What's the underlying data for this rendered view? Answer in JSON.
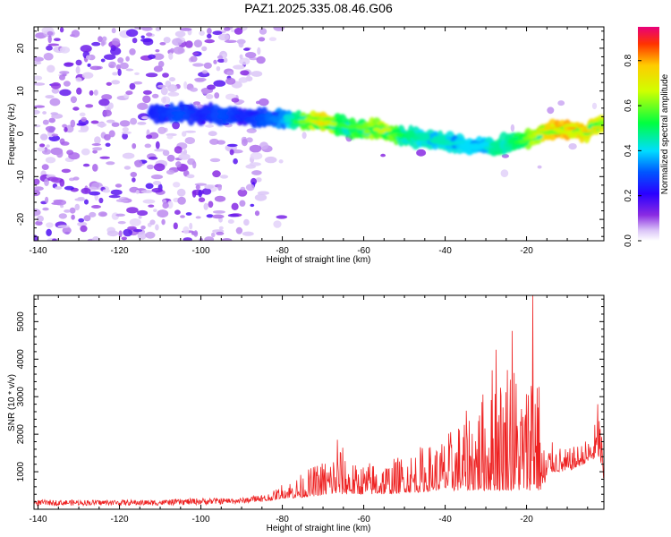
{
  "title": "PAZ1.2025.335.08.46.G06",
  "chart_data": [
    {
      "type": "heatmap",
      "xlabel": "Height of straight line (km)",
      "ylabel": "Frequency (Hz)",
      "xlim": [
        -141,
        -1
      ],
      "ylim": [
        -25,
        25
      ],
      "xticks": [
        -140,
        -120,
        -100,
        -80,
        -60,
        -40,
        -20
      ],
      "yticks": [
        -20,
        -10,
        0,
        10,
        20
      ],
      "colorbar_label": "Normalized spectral amplitude",
      "colorbar_range": [
        0,
        0.95
      ],
      "colorbar_ticks": [
        0.0,
        0.2,
        0.4,
        0.6,
        0.8
      ],
      "colormap_stops": [
        "#ffffff",
        "#d9c2f7",
        "#8a2be2",
        "#5a00ff",
        "#0000ff",
        "#00ffff",
        "#00ff00",
        "#ffff00",
        "#ff0000",
        "#e8007a"
      ],
      "ridge_x": [
        -112,
        -105,
        -100,
        -95,
        -90,
        -85,
        -80,
        -75,
        -70,
        -65,
        -60,
        -55,
        -50,
        -45,
        -40,
        -35,
        -30,
        -27,
        -25,
        -20,
        -15,
        -10,
        -5,
        -2
      ],
      "ridge_y": [
        5,
        5,
        4.5,
        4.5,
        4,
        3.5,
        3.5,
        3,
        2.5,
        1.5,
        1,
        0.5,
        -0.5,
        -1,
        -2,
        -2.5,
        -3,
        -3.5,
        -2.5,
        -1.5,
        1,
        1,
        0.5,
        2
      ],
      "ridge_amplitude": [
        0.25,
        0.3,
        0.25,
        0.3,
        0.25,
        0.3,
        0.35,
        0.6,
        0.75,
        0.55,
        0.6,
        0.7,
        0.5,
        0.45,
        0.45,
        0.4,
        0.4,
        0.5,
        0.45,
        0.6,
        0.75,
        0.85,
        0.8,
        0.7
      ]
    },
    {
      "type": "line",
      "xlabel": "Height of straight line (km)",
      "ylabel": "SNR (10 * v/v)",
      "xlim": [
        -141,
        -1
      ],
      "ylim": [
        0,
        5700
      ],
      "xticks": [
        -140,
        -120,
        -100,
        -80,
        -60,
        -40,
        -20
      ],
      "yticks": [
        1000,
        2000,
        3000,
        4000,
        5000
      ],
      "line_color": "#ee2222",
      "envelope_x": [
        -141,
        -130,
        -120,
        -110,
        -100,
        -90,
        -85,
        -82,
        -80,
        -76,
        -72,
        -68,
        -66,
        -62,
        -58,
        -54,
        -50,
        -46,
        -42,
        -38,
        -35,
        -32,
        -30,
        -28,
        -26,
        -24,
        -22,
        -20,
        -18,
        -16,
        -14,
        -12,
        -10,
        -8,
        -6,
        -4,
        -2,
        -1
      ],
      "envelope_y": [
        250,
        250,
        250,
        250,
        300,
        300,
        400,
        500,
        700,
        900,
        1200,
        1500,
        1800,
        1200,
        1300,
        1300,
        1500,
        1700,
        1800,
        2200,
        2600,
        3000,
        3300,
        4200,
        3700,
        4700,
        3500,
        3500,
        5700,
        1800,
        1800,
        1700,
        1600,
        1700,
        1800,
        2000,
        2800,
        1200
      ],
      "floor_y": [
        100,
        100,
        100,
        100,
        120,
        150,
        200,
        250,
        300,
        300,
        350,
        400,
        400,
        400,
        400,
        400,
        450,
        450,
        500,
        500,
        500,
        500,
        500,
        500,
        500,
        500,
        500,
        500,
        500,
        500,
        1000,
        1000,
        1000,
        1100,
        1200,
        1300,
        1400,
        700
      ],
      "peaks": [
        {
          "x": -18.5,
          "y": 5700
        },
        {
          "x": -23.5,
          "y": 4750
        },
        {
          "x": -27.5,
          "y": 4250
        },
        {
          "x": -2.5,
          "y": 2800
        },
        {
          "x": -66.5,
          "y": 1850
        }
      ]
    }
  ]
}
